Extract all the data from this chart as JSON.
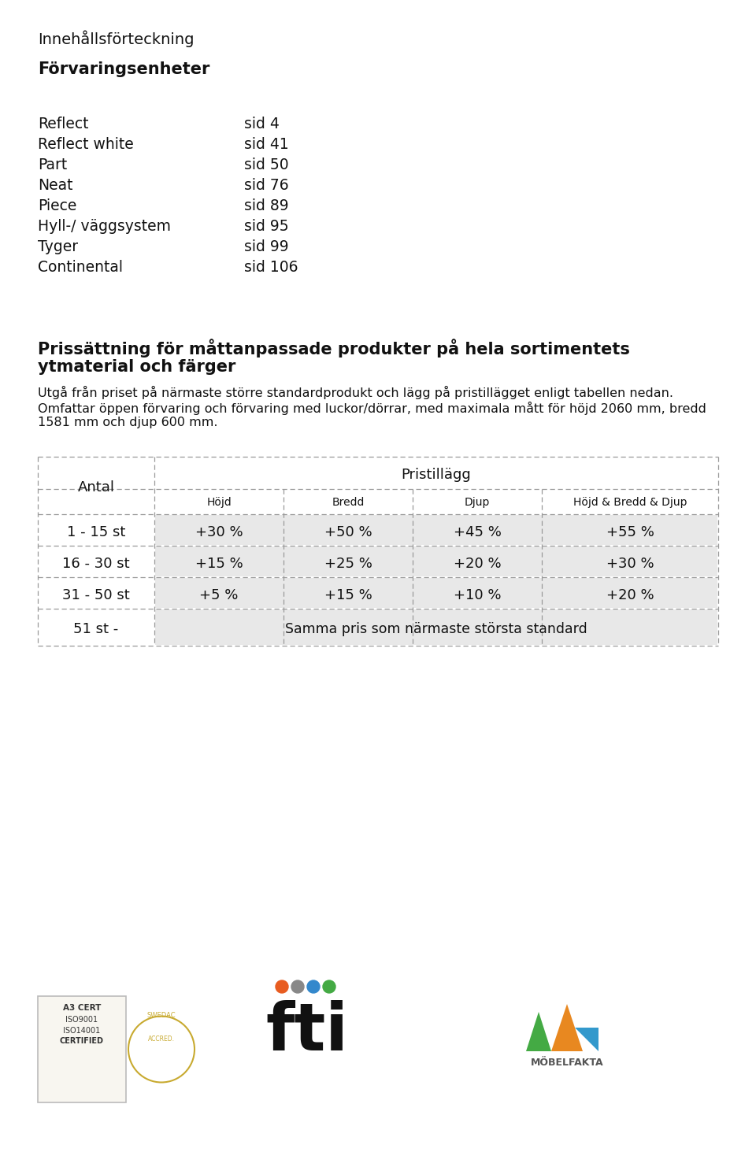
{
  "background_color": "#ffffff",
  "title_toc": "Innehållsförteckning",
  "section_header": "Förvaringsenheter",
  "toc_items": [
    [
      "Reflect",
      "sid 4"
    ],
    [
      "Reflect white",
      "sid 41"
    ],
    [
      "Part",
      "sid 50"
    ],
    [
      "Neat",
      "sid 76"
    ],
    [
      "Piece",
      "sid 89"
    ],
    [
      "Hyll-/ väggsystem",
      "sid 95"
    ],
    [
      "Tyger",
      "sid 99"
    ],
    [
      "Continental",
      "sid 106"
    ]
  ],
  "price_title_line1": "Prissättning för måttanpassade produkter på hela sortimentets",
  "price_title_line2": "ytmaterial och färger",
  "price_body1": "Utgå från priset på närmaste större standardprodukt och lägg på pristillägget enligt tabellen nedan.",
  "price_body2_line1": "Omfattar öppen förvaring och förvaring med luckor/dörrar, med maximala mått för höjd 2060 mm, bredd",
  "price_body2_line2": "1581 mm och djup 600 mm.",
  "table_header_col1": "Antal",
  "table_header_group": "Pristillägg",
  "table_subheaders": [
    "Höjd",
    "Bredd",
    "Djup",
    "Höjd & Bredd & Djup"
  ],
  "table_rows": [
    [
      "1 - 15 st",
      "+30 %",
      "+50 %",
      "+45 %",
      "+55 %"
    ],
    [
      "16 - 30 st",
      "+15 %",
      "+25 %",
      "+20 %",
      "+30 %"
    ],
    [
      "31 - 50 st",
      "+5 %",
      "+15 %",
      "+10 %",
      "+20 %"
    ],
    [
      "51 st -",
      "Samma pris som närmaste största standard",
      "",
      "",
      ""
    ]
  ],
  "shade_color": "#e8e8e8",
  "line_color": "#999999",
  "text_color": "#111111"
}
